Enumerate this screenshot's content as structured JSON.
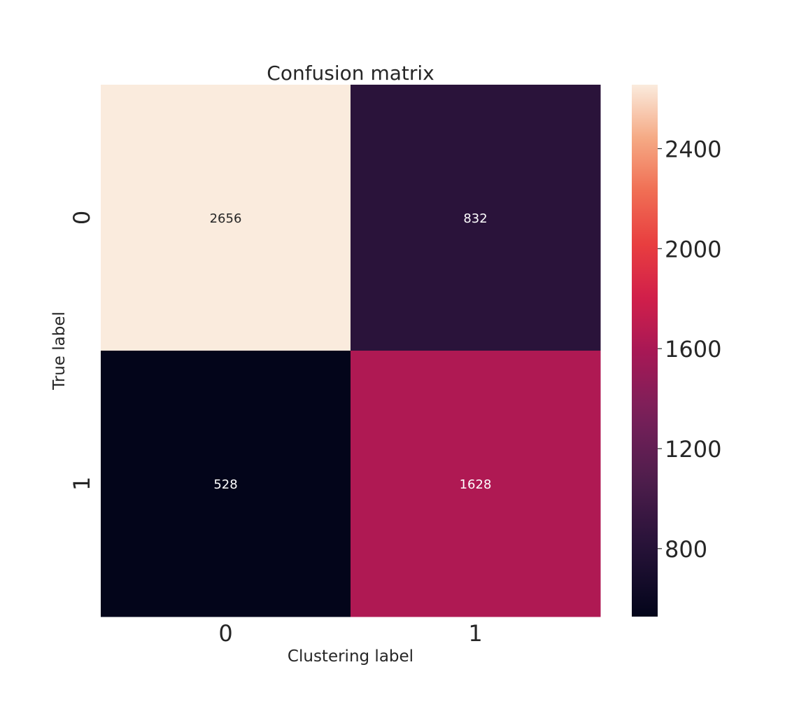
{
  "chart_data": {
    "type": "heatmap",
    "title": "Confusion matrix",
    "xlabel": "Clustering label",
    "ylabel": "True label",
    "x_categories": [
      "0",
      "1"
    ],
    "y_categories": [
      "0",
      "1"
    ],
    "values": [
      [
        2656,
        832
      ],
      [
        528,
        1628
      ]
    ],
    "colormap": "rocket",
    "colorbar": {
      "range": [
        528,
        2656
      ],
      "ticks": [
        800,
        1200,
        1600,
        2000,
        2400
      ],
      "tick_labels": [
        "800",
        "1200",
        "1600",
        "2000",
        "2400"
      ]
    },
    "annotation_colors": {
      "on_light": "#262626",
      "on_dark": "#ffffff"
    },
    "grid": false
  }
}
